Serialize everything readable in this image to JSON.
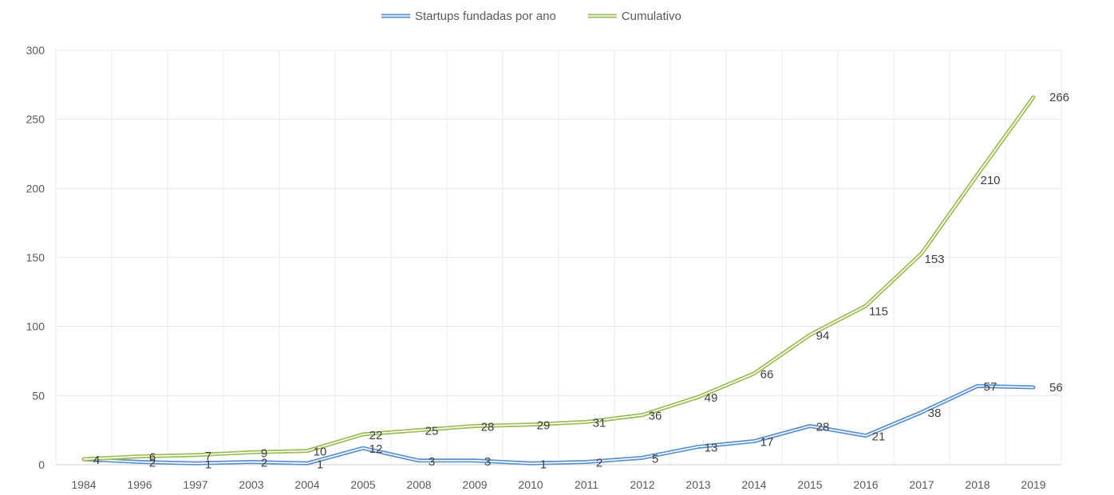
{
  "chart_data": {
    "type": "line",
    "title": "",
    "xlabel": "",
    "ylabel": "",
    "categories": [
      "1984",
      "1996",
      "1997",
      "2003",
      "2004",
      "2005",
      "2008",
      "2009",
      "2010",
      "2011",
      "2012",
      "2013",
      "2014",
      "2015",
      "2016",
      "2017",
      "2018",
      "2019"
    ],
    "series": [
      {
        "name": "Startups fundadas por ano",
        "color": "#5b8fc9",
        "values": [
          4,
          2,
          1,
          2,
          1,
          12,
          3,
          3,
          1,
          2,
          5,
          13,
          17,
          28,
          21,
          38,
          57,
          56
        ]
      },
      {
        "name": "Cumulativo",
        "color": "#9bbb59",
        "values": [
          4,
          6,
          7,
          9,
          10,
          22,
          25,
          28,
          29,
          31,
          36,
          49,
          66,
          94,
          115,
          153,
          210,
          266
        ]
      }
    ],
    "ylim": [
      0,
      300
    ],
    "yticks": [
      0,
      50,
      100,
      150,
      200,
      250,
      300
    ],
    "grid": true,
    "legend_position": "top",
    "data_labels": true
  }
}
